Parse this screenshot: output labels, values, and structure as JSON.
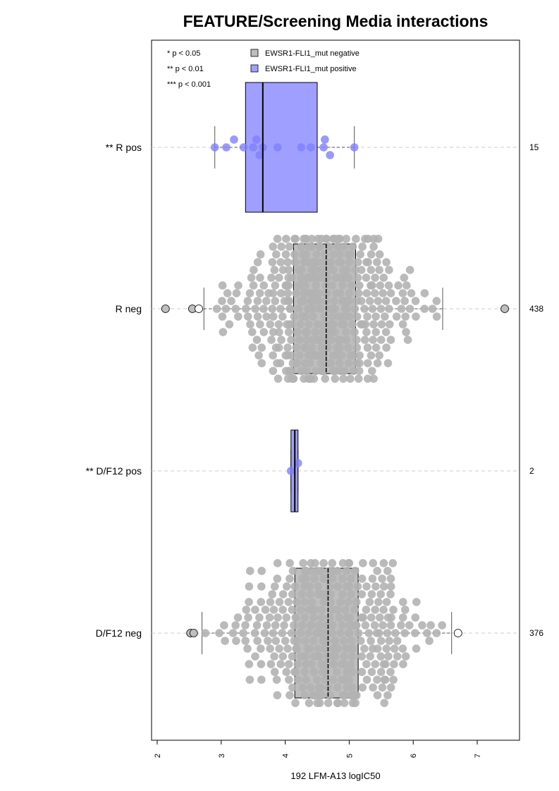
{
  "chart_data": {
    "type": "box+beeswarm",
    "title": "FEATURE/Screening Media interactions",
    "xlabel": "192 LFM-A13 logIC50",
    "xlim": [
      1.95,
      7.65
    ],
    "xticks": [
      2,
      3,
      4,
      5,
      6,
      7
    ],
    "grid": "dashed horizontal line at each group",
    "legend_position": "top-left",
    "legend": [
      {
        "label": "EWSR1-FLI1_mut negative",
        "color": "#bebebe"
      },
      {
        "label": "EWSR1-FLI1_mut positive",
        "color": "#9f9fff"
      }
    ],
    "significance": [
      "* p < 0.05",
      "** p < 0.01",
      "*** p < 0.001"
    ],
    "colors": {
      "negative_fill": "#bebebe",
      "negative_point": "#b3b3b3",
      "positive_fill": "#9f9fff",
      "positive_point": "#7f7fff"
    },
    "groups": [
      {
        "label": "** R pos",
        "n": "15",
        "mutation": "positive",
        "box": {
          "whisker_low": 2.9,
          "q1": 3.38,
          "median": 3.65,
          "q3": 4.5,
          "whisker_high": 5.08
        },
        "outliers": [],
        "points": [
          2.9,
          3.08,
          3.2,
          3.35,
          3.5,
          3.55,
          3.6,
          3.65,
          3.88,
          4.25,
          4.4,
          4.6,
          4.62,
          4.7,
          5.08
        ]
      },
      {
        "label": "R neg",
        "n": "438",
        "mutation": "negative",
        "box": {
          "whisker_low": 2.73,
          "q1": 4.13,
          "median": 4.64,
          "q3": 5.1,
          "whisker_high": 6.46
        },
        "outliers": [
          2.13,
          2.55,
          2.65,
          7.43
        ],
        "distribution": {
          "min": 2.13,
          "max": 7.43,
          "mean": 4.62,
          "sd": 0.66
        }
      },
      {
        "label": "** D/F12 pos",
        "n": "2",
        "mutation": "positive",
        "box": {
          "whisker_low": 4.09,
          "q1": 4.09,
          "median": 4.15,
          "q3": 4.2,
          "whisker_high": 4.2
        },
        "outliers": [],
        "points": [
          4.09,
          4.2
        ]
      },
      {
        "label": "D/F12 neg",
        "n": "376",
        "mutation": "negative",
        "box": {
          "whisker_low": 2.7,
          "q1": 4.15,
          "median": 4.67,
          "q3": 5.14,
          "whisker_high": 6.6
        },
        "outliers": [
          2.52,
          2.57,
          6.7
        ],
        "distribution": {
          "min": 2.52,
          "max": 6.7,
          "mean": 4.66,
          "sd": 0.67
        }
      }
    ]
  }
}
